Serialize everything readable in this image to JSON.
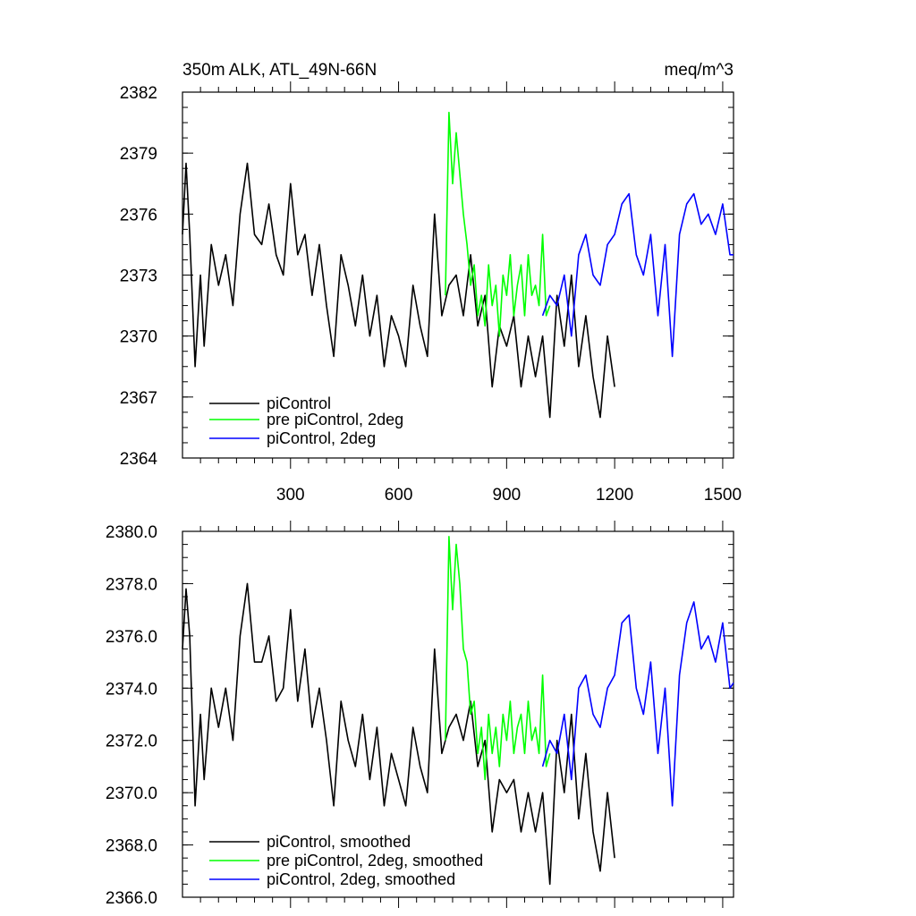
{
  "header": {
    "title": "350m ALK, ATL_49N-66N",
    "units": "meq/m^3"
  },
  "chart_data": [
    {
      "type": "line",
      "xlim": [
        0,
        1530
      ],
      "ylim": [
        2364,
        2382
      ],
      "yticks": [
        2364,
        2367,
        2370,
        2373,
        2376,
        2379,
        2382
      ],
      "ytick_labels": [
        "2364",
        "2367",
        "2370",
        "2373",
        "2376",
        "2379",
        "2382"
      ],
      "xticks": [
        300,
        600,
        900,
        1200,
        1500
      ],
      "xtick_labels": [
        "300",
        "600",
        "900",
        "1200",
        "1500"
      ],
      "show_xtick_labels": true,
      "legend_position": "bottom-left",
      "series": [
        {
          "name": "piControl",
          "color": "#000000",
          "x": [
            0,
            10,
            20,
            35,
            50,
            60,
            80,
            100,
            120,
            140,
            160,
            180,
            200,
            220,
            240,
            260,
            280,
            300,
            320,
            340,
            360,
            380,
            400,
            420,
            440,
            460,
            480,
            500,
            520,
            540,
            560,
            580,
            600,
            620,
            640,
            660,
            680,
            700,
            720,
            740,
            760,
            780,
            800,
            820,
            840,
            860,
            880,
            900,
            920,
            940,
            960,
            980,
            1000,
            1020,
            1040,
            1060,
            1080,
            1100,
            1120,
            1140,
            1160,
            1180,
            1200
          ],
          "y": [
            2375.0,
            2378.5,
            2375.0,
            2368.5,
            2373.0,
            2369.5,
            2374.5,
            2372.5,
            2374.0,
            2371.5,
            2376.0,
            2378.5,
            2375.0,
            2374.5,
            2376.5,
            2374.0,
            2373.0,
            2377.5,
            2374.0,
            2375.0,
            2372.0,
            2374.5,
            2371.5,
            2369.0,
            2374.0,
            2372.5,
            2370.5,
            2373.0,
            2370.0,
            2372.0,
            2368.5,
            2371.0,
            2370.0,
            2368.5,
            2372.5,
            2370.5,
            2369.0,
            2376.0,
            2371.0,
            2372.5,
            2373.0,
            2371.0,
            2374.0,
            2370.5,
            2372.0,
            2367.5,
            2370.5,
            2369.5,
            2371.0,
            2367.5,
            2370.0,
            2368.0,
            2370.0,
            2366.0,
            2372.0,
            2369.5,
            2373.0,
            2368.5,
            2371.0,
            2368.0,
            2366.0,
            2370.0,
            2367.5
          ]
        },
        {
          "name": "pre piControl, 2deg",
          "color": "#00ff00",
          "x": [
            730,
            740,
            750,
            760,
            770,
            780,
            790,
            800,
            810,
            820,
            830,
            840,
            850,
            860,
            870,
            880,
            890,
            900,
            910,
            920,
            930,
            940,
            950,
            960,
            970,
            980,
            990,
            1000,
            1010,
            1020
          ],
          "y": [
            2372.0,
            2381.0,
            2377.5,
            2380.0,
            2378.0,
            2376.0,
            2374.5,
            2372.5,
            2373.5,
            2371.0,
            2372.0,
            2370.5,
            2373.5,
            2371.5,
            2372.5,
            2370.0,
            2373.0,
            2372.0,
            2374.0,
            2371.0,
            2372.5,
            2373.5,
            2371.0,
            2374.0,
            2372.0,
            2372.5,
            2371.5,
            2375.0,
            2371.0,
            2371.5
          ]
        },
        {
          "name": "piControl, 2deg",
          "color": "#0000ff",
          "x": [
            1000,
            1020,
            1040,
            1060,
            1080,
            1100,
            1120,
            1140,
            1160,
            1180,
            1200,
            1220,
            1240,
            1260,
            1280,
            1300,
            1320,
            1340,
            1360,
            1380,
            1400,
            1420,
            1440,
            1460,
            1480,
            1500,
            1520,
            1530
          ],
          "y": [
            2371.0,
            2372.0,
            2371.5,
            2373.0,
            2370.0,
            2374.0,
            2375.0,
            2373.0,
            2372.5,
            2374.5,
            2375.0,
            2376.5,
            2377.0,
            2374.0,
            2373.0,
            2375.0,
            2371.0,
            2374.5,
            2369.0,
            2375.0,
            2376.5,
            2377.0,
            2375.5,
            2376.0,
            2375.0,
            2376.5,
            2374.0,
            2374.0
          ]
        }
      ]
    },
    {
      "type": "line",
      "xlim": [
        0,
        1530
      ],
      "ylim": [
        2366.0,
        2380.0
      ],
      "yticks": [
        2366,
        2368,
        2370,
        2372,
        2374,
        2376,
        2378,
        2380
      ],
      "ytick_labels": [
        "2366.0",
        "2368.0",
        "2370.0",
        "2372.0",
        "2374.0",
        "2376.0",
        "2378.0",
        "2380.0"
      ],
      "xticks": [
        300,
        600,
        900,
        1200,
        1500
      ],
      "show_xtick_labels": false,
      "legend_position": "bottom-left",
      "series": [
        {
          "name": "piControl, smoothed",
          "color": "#000000",
          "x": [
            0,
            10,
            20,
            35,
            50,
            60,
            80,
            100,
            120,
            140,
            160,
            180,
            200,
            220,
            240,
            260,
            280,
            300,
            320,
            340,
            360,
            380,
            400,
            420,
            440,
            460,
            480,
            500,
            520,
            540,
            560,
            580,
            600,
            620,
            640,
            660,
            680,
            700,
            720,
            740,
            760,
            780,
            800,
            820,
            840,
            860,
            880,
            900,
            920,
            940,
            960,
            980,
            1000,
            1020,
            1040,
            1060,
            1080,
            1100,
            1120,
            1140,
            1160,
            1180,
            1200
          ],
          "y": [
            2375.5,
            2377.8,
            2376.0,
            2369.5,
            2373.0,
            2370.5,
            2374.0,
            2372.5,
            2374.0,
            2372.0,
            2376.0,
            2378.0,
            2375.0,
            2375.0,
            2376.0,
            2373.5,
            2374.0,
            2377.0,
            2373.5,
            2375.5,
            2372.5,
            2374.0,
            2372.0,
            2369.5,
            2373.5,
            2372.0,
            2371.0,
            2373.0,
            2370.5,
            2372.5,
            2369.5,
            2371.5,
            2370.5,
            2369.5,
            2372.5,
            2371.0,
            2370.0,
            2375.5,
            2371.5,
            2372.5,
            2373.0,
            2372.0,
            2373.5,
            2371.0,
            2372.0,
            2368.5,
            2370.5,
            2370.0,
            2370.5,
            2368.5,
            2370.0,
            2368.5,
            2370.0,
            2366.5,
            2372.0,
            2370.0,
            2373.0,
            2369.0,
            2371.5,
            2368.5,
            2367.0,
            2370.0,
            2367.5
          ]
        },
        {
          "name": "pre piControl, 2deg, smoothed",
          "color": "#00ff00",
          "x": [
            730,
            740,
            750,
            760,
            770,
            780,
            790,
            800,
            810,
            820,
            830,
            840,
            850,
            860,
            870,
            880,
            890,
            900,
            910,
            920,
            930,
            940,
            950,
            960,
            970,
            980,
            990,
            1000,
            1010,
            1020
          ],
          "y": [
            2372.0,
            2379.8,
            2377.0,
            2379.5,
            2378.0,
            2375.5,
            2375.0,
            2373.0,
            2373.5,
            2371.5,
            2372.5,
            2370.5,
            2373.0,
            2371.5,
            2372.5,
            2371.0,
            2373.0,
            2372.0,
            2373.5,
            2371.5,
            2372.5,
            2373.0,
            2371.5,
            2373.5,
            2372.0,
            2372.5,
            2371.5,
            2374.5,
            2371.0,
            2371.5
          ]
        },
        {
          "name": "piControl, 2deg, smoothed",
          "color": "#0000ff",
          "x": [
            1000,
            1020,
            1040,
            1060,
            1080,
            1100,
            1120,
            1140,
            1160,
            1180,
            1200,
            1220,
            1240,
            1260,
            1280,
            1300,
            1320,
            1340,
            1360,
            1380,
            1400,
            1420,
            1440,
            1460,
            1480,
            1500,
            1520,
            1530
          ],
          "y": [
            2371.0,
            2372.0,
            2371.5,
            2373.0,
            2370.5,
            2374.0,
            2374.5,
            2373.0,
            2372.5,
            2374.0,
            2374.5,
            2376.5,
            2376.8,
            2374.0,
            2373.0,
            2375.0,
            2371.5,
            2374.0,
            2369.5,
            2374.5,
            2376.5,
            2377.3,
            2375.5,
            2376.0,
            2375.0,
            2376.5,
            2374.0,
            2374.2
          ]
        }
      ]
    }
  ]
}
